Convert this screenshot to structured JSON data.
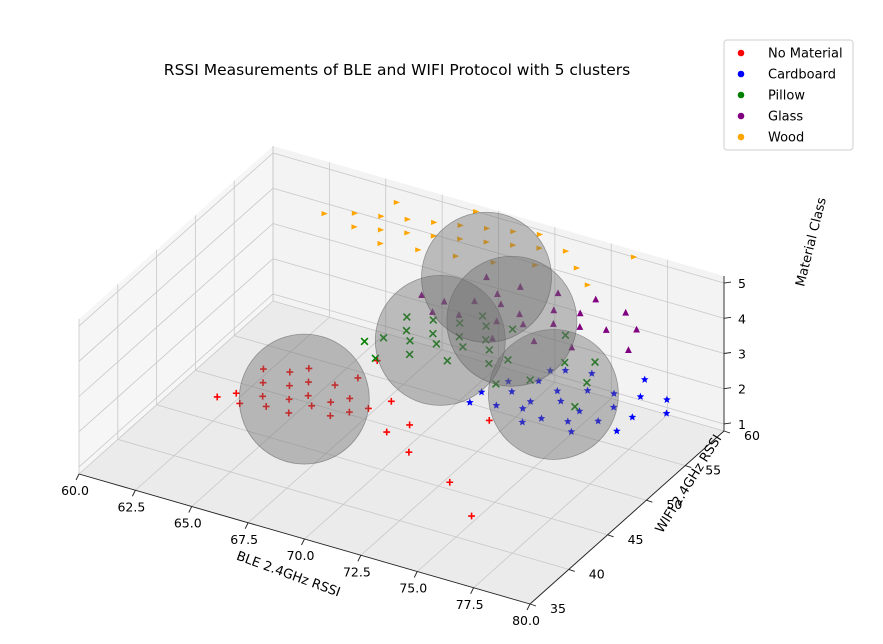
{
  "chart_data": {
    "type": "scatter3d",
    "title": "RSSI Measurements of BLE and WIFI Protocol with 5 clusters",
    "xlabel": "BLE 2.4GHz RSSI",
    "ylabel": "WIFI 2.4GHz RSSI",
    "zlabel": "Material Class",
    "xlim": [
      60,
      80
    ],
    "ylim": [
      35,
      60
    ],
    "zlim": [
      0.8,
      5.2
    ],
    "xticks": [
      "60.0",
      "62.5",
      "65.0",
      "67.5",
      "70.0",
      "72.5",
      "75.0",
      "77.5",
      "80.0"
    ],
    "yticks": [
      "35",
      "40",
      "45",
      "50",
      "55",
      "60"
    ],
    "zticks": [
      "1",
      "2",
      "3",
      "4",
      "5"
    ],
    "grid": true,
    "legend_position": "top-right",
    "legend": [
      {
        "label": "No Material",
        "color": "#ff0000"
      },
      {
        "label": "Cardboard",
        "color": "#0000ff"
      },
      {
        "label": "Pillow",
        "color": "#008000"
      },
      {
        "label": "Glass",
        "color": "#800080"
      },
      {
        "label": "Wood",
        "color": "#ffa500"
      }
    ],
    "series": [
      {
        "name": "No Material",
        "color": "#ff0000",
        "marker": "plus",
        "points": [
          [
            62.0,
            47.0,
            1
          ],
          [
            63.0,
            47.0,
            1
          ],
          [
            64.0,
            47.5,
            1
          ],
          [
            65.0,
            47.5,
            1
          ],
          [
            62.5,
            48.0,
            1
          ],
          [
            63.5,
            48.5,
            1
          ],
          [
            64.5,
            49.0,
            1
          ],
          [
            65.5,
            49.0,
            1
          ],
          [
            66.5,
            48.5,
            1
          ],
          [
            63.0,
            50.0,
            1
          ],
          [
            64.0,
            50.5,
            1
          ],
          [
            65.0,
            50.0,
            1
          ],
          [
            66.0,
            50.0,
            1
          ],
          [
            67.0,
            49.5,
            1
          ],
          [
            62.5,
            51.5,
            1
          ],
          [
            63.5,
            52.0,
            1
          ],
          [
            64.5,
            51.5,
            1
          ],
          [
            65.5,
            52.0,
            1
          ],
          [
            66.5,
            51.0,
            1
          ],
          [
            67.5,
            50.5,
            1
          ],
          [
            64.0,
            53.0,
            1
          ],
          [
            66.0,
            53.5,
            1
          ],
          [
            68.0,
            52.0,
            1
          ],
          [
            69.5,
            50.0,
            1
          ],
          [
            70.5,
            47.0,
            1
          ],
          [
            73.0,
            45.0,
            1
          ],
          [
            72.0,
            53.0,
            1
          ],
          [
            75.0,
            42.0,
            1
          ],
          [
            69.0,
            48.5,
            1
          ],
          [
            66.0,
            56.0,
            1
          ]
        ]
      },
      {
        "name": "Cardboard",
        "color": "#0000ff",
        "marker": "star",
        "points": [
          [
            72.0,
            52.0,
            2
          ],
          [
            73.0,
            53.0,
            2
          ],
          [
            74.0,
            52.5,
            2
          ],
          [
            75.0,
            53.5,
            2
          ],
          [
            76.0,
            53.0,
            2
          ],
          [
            77.0,
            54.5,
            2
          ],
          [
            72.5,
            54.0,
            2
          ],
          [
            73.5,
            55.0,
            2
          ],
          [
            74.5,
            54.5,
            2
          ],
          [
            75.5,
            55.5,
            2
          ],
          [
            76.5,
            56.0,
            2
          ],
          [
            77.5,
            56.5,
            2
          ],
          [
            73.0,
            51.0,
            2
          ],
          [
            74.0,
            51.5,
            2
          ],
          [
            75.0,
            51.0,
            2
          ],
          [
            76.0,
            51.5,
            2
          ],
          [
            77.0,
            52.5,
            2
          ],
          [
            78.0,
            54.0,
            2
          ],
          [
            73.5,
            56.5,
            2
          ],
          [
            75.0,
            57.5,
            2
          ],
          [
            77.0,
            58.5,
            2
          ],
          [
            78.5,
            57.0,
            2
          ],
          [
            74.5,
            50.0,
            2
          ],
          [
            76.5,
            50.5,
            2
          ],
          [
            78.0,
            52.0,
            2
          ],
          [
            79.0,
            55.5,
            2
          ],
          [
            72.0,
            50.5,
            2
          ],
          [
            74.0,
            57.0,
            2
          ]
        ]
      },
      {
        "name": "Pillow",
        "color": "#008000",
        "marker": "x",
        "points": [
          [
            68.0,
            51.0,
            3
          ],
          [
            69.0,
            51.5,
            3
          ],
          [
            70.0,
            52.0,
            3
          ],
          [
            71.0,
            52.5,
            3
          ],
          [
            68.5,
            52.5,
            3
          ],
          [
            69.5,
            53.0,
            3
          ],
          [
            70.5,
            53.5,
            3
          ],
          [
            71.5,
            54.0,
            3
          ],
          [
            68.0,
            54.0,
            3
          ],
          [
            69.0,
            54.5,
            3
          ],
          [
            70.0,
            55.0,
            3
          ],
          [
            71.0,
            55.5,
            3
          ],
          [
            72.0,
            53.0,
            3
          ],
          [
            69.5,
            50.0,
            3
          ],
          [
            71.0,
            50.5,
            3
          ],
          [
            72.5,
            51.5,
            3
          ],
          [
            73.0,
            52.5,
            3
          ],
          [
            70.5,
            56.5,
            3
          ],
          [
            72.0,
            56.0,
            3
          ],
          [
            74.5,
            51.0,
            3
          ],
          [
            75.0,
            54.0,
            3
          ],
          [
            76.0,
            55.0,
            3
          ],
          [
            76.5,
            52.5,
            3
          ],
          [
            77.0,
            49.5,
            3
          ],
          [
            73.5,
            49.5,
            3
          ],
          [
            68.5,
            48.5,
            3
          ],
          [
            67.5,
            50.0,
            3
          ],
          [
            74.0,
            57.0,
            3
          ]
        ]
      },
      {
        "name": "Glass",
        "color": "#800080",
        "marker": "triangle",
        "points": [
          [
            69.0,
            53.0,
            4
          ],
          [
            70.0,
            53.0,
            4
          ],
          [
            71.0,
            54.0,
            4
          ],
          [
            72.0,
            54.5,
            4
          ],
          [
            73.0,
            54.0,
            4
          ],
          [
            73.5,
            53.0,
            4
          ],
          [
            74.5,
            54.0,
            4
          ],
          [
            75.5,
            54.5,
            4
          ],
          [
            76.5,
            55.0,
            4
          ],
          [
            75.0,
            56.0,
            4
          ],
          [
            74.0,
            55.5,
            4
          ],
          [
            72.5,
            52.5,
            4
          ],
          [
            71.0,
            52.0,
            4
          ],
          [
            70.0,
            51.5,
            4
          ],
          [
            72.0,
            57.0,
            4
          ],
          [
            73.5,
            57.5,
            4
          ],
          [
            75.0,
            58.0,
            4
          ],
          [
            76.5,
            57.5,
            4
          ],
          [
            71.5,
            55.5,
            4
          ],
          [
            73.0,
            50.5,
            4
          ],
          [
            74.5,
            51.5,
            4
          ],
          [
            76.0,
            52.0,
            4
          ],
          [
            77.5,
            56.0,
            4
          ],
          [
            70.5,
            57.0,
            4
          ],
          [
            78.0,
            53.5,
            4
          ]
        ]
      },
      {
        "name": "Wood",
        "color": "#ffa500",
        "marker": "tri-right",
        "points": [
          [
            64.0,
            55.0,
            5
          ],
          [
            65.0,
            56.0,
            5
          ],
          [
            66.0,
            56.5,
            5
          ],
          [
            67.0,
            57.0,
            5
          ],
          [
            68.0,
            57.5,
            5
          ],
          [
            69.0,
            58.0,
            5
          ],
          [
            70.0,
            58.5,
            5
          ],
          [
            71.0,
            59.0,
            5
          ],
          [
            72.0,
            59.5,
            5
          ],
          [
            65.5,
            54.5,
            5
          ],
          [
            66.5,
            55.0,
            5
          ],
          [
            67.5,
            55.5,
            5
          ],
          [
            68.5,
            56.0,
            5
          ],
          [
            69.5,
            56.5,
            5
          ],
          [
            70.5,
            57.0,
            5
          ],
          [
            71.5,
            57.5,
            5
          ],
          [
            72.5,
            58.0,
            5
          ],
          [
            73.5,
            58.5,
            5
          ],
          [
            67.0,
            53.5,
            5
          ],
          [
            68.5,
            54.0,
            5
          ],
          [
            70.0,
            54.5,
            5
          ],
          [
            71.5,
            55.0,
            5
          ],
          [
            73.0,
            56.0,
            5
          ],
          [
            74.5,
            57.0,
            5
          ],
          [
            66.0,
            58.5,
            5
          ],
          [
            69.0,
            60.0,
            5
          ],
          [
            75.5,
            55.5,
            5
          ],
          [
            76.0,
            60.0,
            5
          ]
        ]
      }
    ],
    "clusters": [
      {
        "center": [
          65.0,
          49.5,
          1
        ]
      },
      {
        "center": [
          74.5,
          54.0,
          2
        ]
      },
      {
        "center": [
          70.0,
          52.5,
          3
        ]
      },
      {
        "center": [
          73.0,
          53.0,
          4
        ]
      },
      {
        "center": [
          70.5,
          57.0,
          4
        ]
      }
    ]
  }
}
